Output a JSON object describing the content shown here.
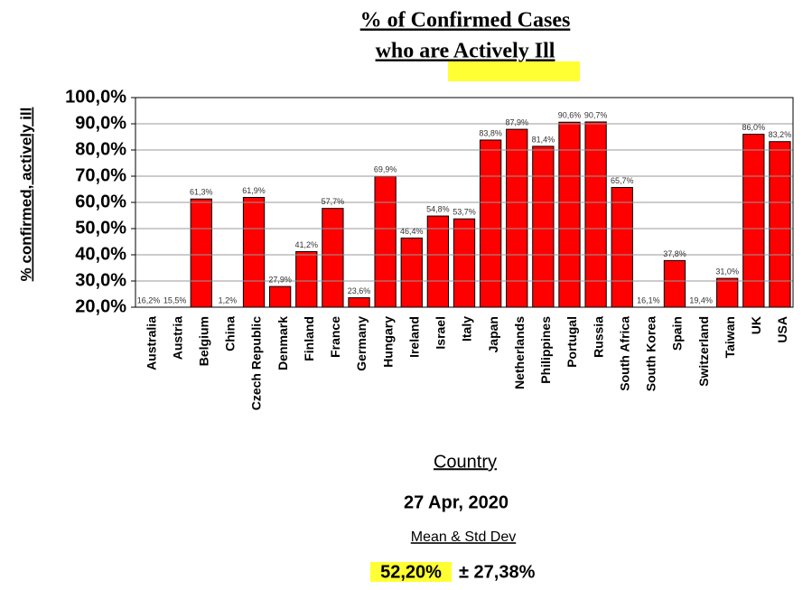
{
  "chart_data": {
    "type": "bar",
    "title": [
      "% of Confirmed Cases",
      "who are Actively Ill"
    ],
    "ylabel": "% confirmed, actively ill",
    "xlabel": "Country",
    "categories": [
      "Australia",
      "Austria",
      "Belgium",
      "China",
      "Czech Republic",
      "Denmark",
      "Finland",
      "France",
      "Germany",
      "Hungary",
      "Ireland",
      "Israel",
      "Italy",
      "Japan",
      "Netherlands",
      "Philippines",
      "Portugal",
      "Russia",
      "South Africa",
      "South Korea",
      "Spain",
      "Switzerland",
      "Taiwan",
      "UK",
      "USA"
    ],
    "values": [
      16.2,
      15.5,
      61.3,
      1.2,
      61.9,
      27.9,
      41.2,
      57.7,
      23.6,
      69.9,
      46.4,
      54.8,
      53.7,
      83.8,
      87.9,
      81.4,
      90.6,
      90.7,
      65.7,
      16.1,
      37.8,
      19.4,
      31.0,
      86.0,
      83.2
    ],
    "value_labels": [
      "16,2%",
      "15,5%",
      "61,3%",
      "1,2%",
      "61,9%",
      "27,9%",
      "41,2%",
      "57,7%",
      "23,6%",
      "69,9%",
      "46,4%",
      "54,8%",
      "53,7%",
      "83,8%",
      "87,9%",
      "81,4%",
      "90,6%",
      "90,7%",
      "65,7%",
      "16,1%",
      "37,8%",
      "19,4%",
      "31,0%",
      "86,0%",
      "83,2%"
    ],
    "color": "#ff0000",
    "ylim": [
      20,
      100
    ],
    "yticks": [
      {
        "value": 20,
        "label": "20,0%"
      },
      {
        "value": 30,
        "label": "30,0%"
      },
      {
        "value": 40,
        "label": "40,0%"
      },
      {
        "value": 50,
        "label": "50,0%"
      },
      {
        "value": 60,
        "label": "60,0%"
      },
      {
        "value": 70,
        "label": "70,0%"
      },
      {
        "value": 80,
        "label": "80,0%"
      },
      {
        "value": 90,
        "label": "90,0%"
      },
      {
        "value": 100,
        "label": "100,0%"
      }
    ],
    "grid": true,
    "annotations": {
      "date": "27 Apr, 2020",
      "stat_title": "Mean & Std Dev",
      "mean": "52,20%",
      "std": "± 27,38%"
    }
  }
}
